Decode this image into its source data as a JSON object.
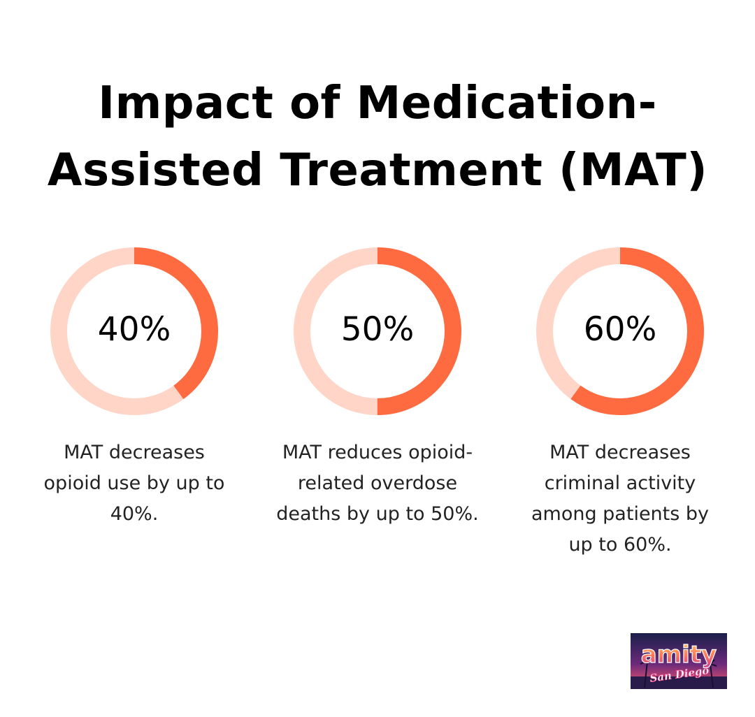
{
  "title": {
    "line1": "Impact of Medication-",
    "line2": "Assisted Treatment (MAT)"
  },
  "colors": {
    "accent": "#ff6b40",
    "track": "#ffd5c8",
    "text": "#000000"
  },
  "chart_data": [
    {
      "type": "pie",
      "label": "40%",
      "value": 40,
      "max": 100,
      "caption": "MAT decreases opioid use by up to 40%."
    },
    {
      "type": "pie",
      "label": "50%",
      "value": 50,
      "max": 100,
      "caption": "MAT reduces opioid-related overdose deaths by up to 50%."
    },
    {
      "type": "pie",
      "label": "60%",
      "value": 60,
      "max": 100,
      "caption": "MAT decreases criminal activity among patients by up to 60%."
    }
  ],
  "logo": {
    "wordmark": "amity",
    "script": "San Diego"
  }
}
